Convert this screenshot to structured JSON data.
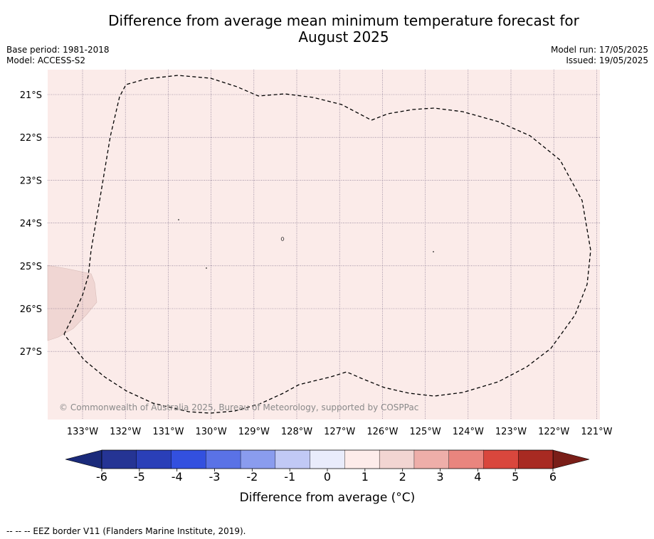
{
  "title_line1": "Difference from average mean minimum temperature forecast for",
  "title_line2": "August 2025",
  "meta": {
    "base_period": "Base period: 1981-2018",
    "model": "Model: ACCESS-S2",
    "model_run": "Model run: 17/05/2025",
    "issued": "Issued: 19/05/2025"
  },
  "map": {
    "lon_labels": [
      "133°W",
      "132°W",
      "131°W",
      "130°W",
      "129°W",
      "128°W",
      "127°W",
      "126°W",
      "125°W",
      "124°W",
      "123°W",
      "122°W",
      "121°W"
    ],
    "lat_labels": [
      "21°S",
      "22°S",
      "23°S",
      "24°S",
      "25°S",
      "26°S",
      "27°S"
    ],
    "copyright": "© Commonwealth of Australia 2025, Bureau of Meteorology, supported by COSPPac",
    "anomaly_fill_color": "#fbebe9",
    "anomaly_patch_color": "#f0d6d3",
    "eez_line": "dashed"
  },
  "colorbar": {
    "label": "Difference from average (°C)",
    "ticks": [
      "-6",
      "-5",
      "-4",
      "-3",
      "-2",
      "-1",
      "0",
      "1",
      "2",
      "3",
      "4",
      "5",
      "6"
    ],
    "colors": [
      "#253494",
      "#2a3fb8",
      "#3350df",
      "#5a72e6",
      "#8a9cee",
      "#c1c9f5",
      "#e9ecfb",
      "#fdecea",
      "#f2d5d2",
      "#eeaea9",
      "#e9857e",
      "#d9473d",
      "#a82a22"
    ],
    "under_color": "#1a2a7a",
    "over_color": "#7a1e18"
  },
  "footer": "-- -- -- EEZ border V11 (Flanders Marine Institute, 2019)."
}
